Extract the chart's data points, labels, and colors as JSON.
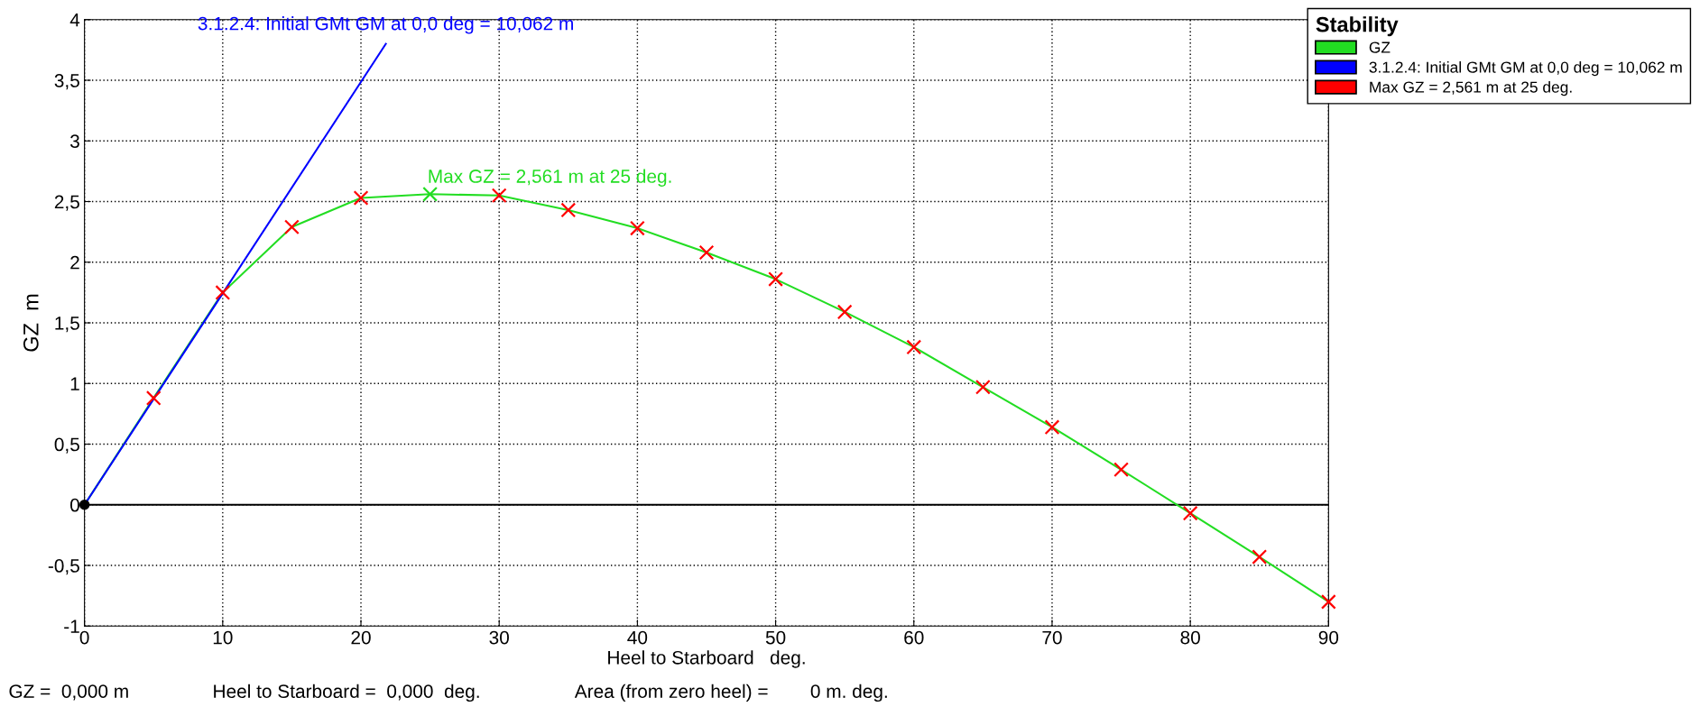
{
  "chart_data": {
    "type": "line",
    "xlabel": "Heel to Starboard   deg.",
    "ylabel": "GZ  m",
    "legend_title": "Stability",
    "legend": "top right",
    "grid": true,
    "xlim": [
      0,
      90
    ],
    "xticks": [
      0,
      10,
      20,
      30,
      40,
      50,
      60,
      70,
      80,
      90
    ],
    "ylim": [
      -1,
      4
    ],
    "yticks": [
      {
        "value": -1,
        "label": "-1"
      },
      {
        "value": -0.5,
        "label": "-0,5"
      },
      0,
      {
        "value": 0.5,
        "label": "0,5"
      },
      1,
      {
        "value": 1.5,
        "label": "1,5"
      },
      2,
      {
        "value": 2.5,
        "label": "2,5"
      },
      3,
      {
        "value": 3.5,
        "label": "3,5"
      },
      4
    ],
    "series": [
      {
        "name": "GZ",
        "color": "#22dd22",
        "x": [
          0,
          5,
          10,
          15,
          20,
          25,
          30,
          35,
          40,
          45,
          50,
          55,
          60,
          65,
          70,
          75,
          80,
          85,
          90
        ],
        "values": [
          0,
          0.88,
          1.75,
          2.29,
          2.53,
          2.561,
          2.55,
          2.43,
          2.28,
          2.08,
          1.86,
          1.59,
          1.3,
          0.97,
          0.64,
          0.29,
          -0.07,
          -0.43,
          -0.8
        ]
      },
      {
        "name": "3.1.2.4: Initial GMt GM at 0,0 deg = 10,062 m",
        "type": "line",
        "color": "#0000ff",
        "x": [
          0,
          21.8
        ],
        "values": [
          0,
          3.8
        ]
      },
      {
        "name": "Max GZ = 2,561 m at 25 deg.",
        "type": "scatter",
        "marker": "cross",
        "color": "#ff0000",
        "x": [
          5,
          10,
          15,
          20,
          30,
          35,
          40,
          45,
          50,
          55,
          60,
          65,
          70,
          75,
          80,
          85,
          90
        ],
        "values": [
          0.88,
          1.75,
          2.29,
          2.53,
          2.55,
          2.43,
          2.28,
          2.08,
          1.86,
          1.59,
          1.3,
          0.97,
          0.64,
          0.29,
          -0.07,
          -0.43,
          -0.8
        ]
      },
      {
        "type": "scatter",
        "marker": "cross",
        "color": "#22dd22",
        "x": [
          25
        ],
        "values": [
          2.561
        ]
      },
      {
        "type": "scatter",
        "marker": "circle",
        "color": "#000000",
        "x": [
          0
        ],
        "values": [
          0
        ]
      }
    ],
    "ref_lines": [
      {
        "axis": "y",
        "value": 0,
        "color": "#000000"
      }
    ],
    "annotations": [
      {
        "text": "3.1.2.4: Initial GMt GM at 0,0 deg = 10,062 m",
        "x": 21.8,
        "y": 3.8
      },
      {
        "text": "Max GZ = 2,561 m at 25 deg.",
        "x": 25,
        "y": 2.561
      },
      "GZ =  0,000 m",
      "Heel to Starboard =  0,000  deg.",
      "Area (from zero heel) =        0 m. deg."
    ]
  }
}
